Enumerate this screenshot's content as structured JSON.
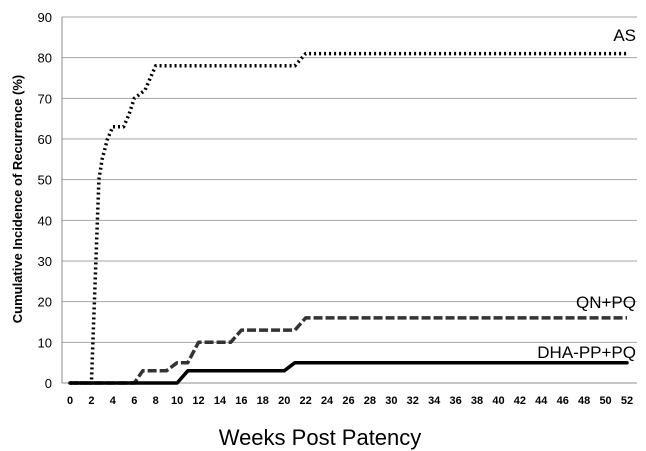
{
  "chart_data": {
    "type": "line",
    "title": "",
    "xlabel": "Weeks Post Patency",
    "ylabel": "Cumulative Incidence of Recurrence (%)",
    "xlim": [
      0,
      52
    ],
    "ylim": [
      0,
      90
    ],
    "x_ticks": [
      0,
      2,
      4,
      6,
      8,
      10,
      12,
      14,
      16,
      18,
      20,
      22,
      24,
      26,
      28,
      30,
      32,
      34,
      36,
      38,
      40,
      42,
      44,
      46,
      48,
      50,
      52
    ],
    "y_ticks": [
      0,
      10,
      20,
      30,
      40,
      50,
      60,
      70,
      80,
      90
    ],
    "grid": "horizontal",
    "series": [
      {
        "name": "AS",
        "style": "dotted",
        "color": "#000000",
        "points": [
          [
            0,
            0
          ],
          [
            2,
            0
          ],
          [
            2.7,
            50
          ],
          [
            3,
            55
          ],
          [
            3.5,
            60
          ],
          [
            4,
            63
          ],
          [
            5,
            63
          ],
          [
            5.5,
            66
          ],
          [
            6,
            70
          ],
          [
            7,
            72
          ],
          [
            7.5,
            75
          ],
          [
            8,
            78
          ],
          [
            20,
            78
          ],
          [
            21,
            78
          ],
          [
            22,
            81
          ],
          [
            52,
            81
          ]
        ]
      },
      {
        "name": "QN+PQ",
        "style": "dashed",
        "color": "#333333",
        "points": [
          [
            0,
            0
          ],
          [
            6,
            0
          ],
          [
            6.8,
            3
          ],
          [
            8,
            3
          ],
          [
            9,
            3
          ],
          [
            10,
            5
          ],
          [
            11,
            5
          ],
          [
            12,
            10
          ],
          [
            15,
            10
          ],
          [
            16,
            13
          ],
          [
            20,
            13
          ],
          [
            21,
            13
          ],
          [
            22,
            16
          ],
          [
            52,
            16
          ]
        ]
      },
      {
        "name": "DHA-PP+PQ",
        "style": "solid",
        "color": "#000000",
        "points": [
          [
            0,
            0
          ],
          [
            10,
            0
          ],
          [
            11,
            3
          ],
          [
            20,
            3
          ],
          [
            21,
            5
          ],
          [
            52,
            5
          ]
        ]
      }
    ]
  }
}
